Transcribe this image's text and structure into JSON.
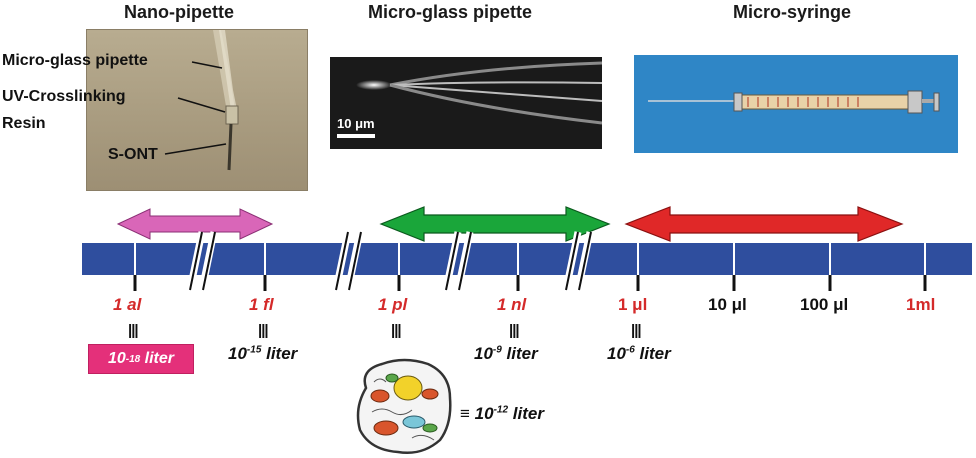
{
  "titles": {
    "nano": "Nano-pipette",
    "micro_glass": "Micro-glass pipette",
    "micro_syringe": "Micro-syringe"
  },
  "photo1_labels": {
    "pipette": "Micro-glass pipette",
    "resin_line1": "UV-Crosslinking",
    "resin_line2": "Resin",
    "sont": "S-ONT"
  },
  "scale_bar_label": "10 μm",
  "ticks": [
    {
      "label": "1 al",
      "color": "red"
    },
    {
      "label": "1 fl",
      "color": "red"
    },
    {
      "label": "1 pl",
      "color": "red"
    },
    {
      "label": "1 nl",
      "color": "red"
    },
    {
      "label": "1 μl",
      "color": "red"
    },
    {
      "label": "10 μl",
      "color": "black"
    },
    {
      "label": "100 μl",
      "color": "black"
    },
    {
      "label": "1ml",
      "color": "red"
    }
  ],
  "equiv_symbol": "|||",
  "volumes": {
    "al": {
      "base": "10",
      "exp": "-18",
      "unit": " liter"
    },
    "fl": {
      "base": "10",
      "exp": "-15",
      "unit": " liter"
    },
    "pl": {
      "prefix": "≡ ",
      "base": "10",
      "exp": "-12",
      "unit": " liter"
    },
    "nl": {
      "base": "10",
      "exp": "-9",
      "unit": " liter"
    },
    "ul": {
      "base": "10",
      "exp": "-6",
      "unit": " liter"
    }
  },
  "colors": {
    "timeline": "#2f4e9e",
    "pink_arrow": "#d966b8",
    "green_arrow": "#1aa63a",
    "red_arrow": "#e02828",
    "tick_red": "#d42a2a",
    "badge": "#e4307a"
  }
}
